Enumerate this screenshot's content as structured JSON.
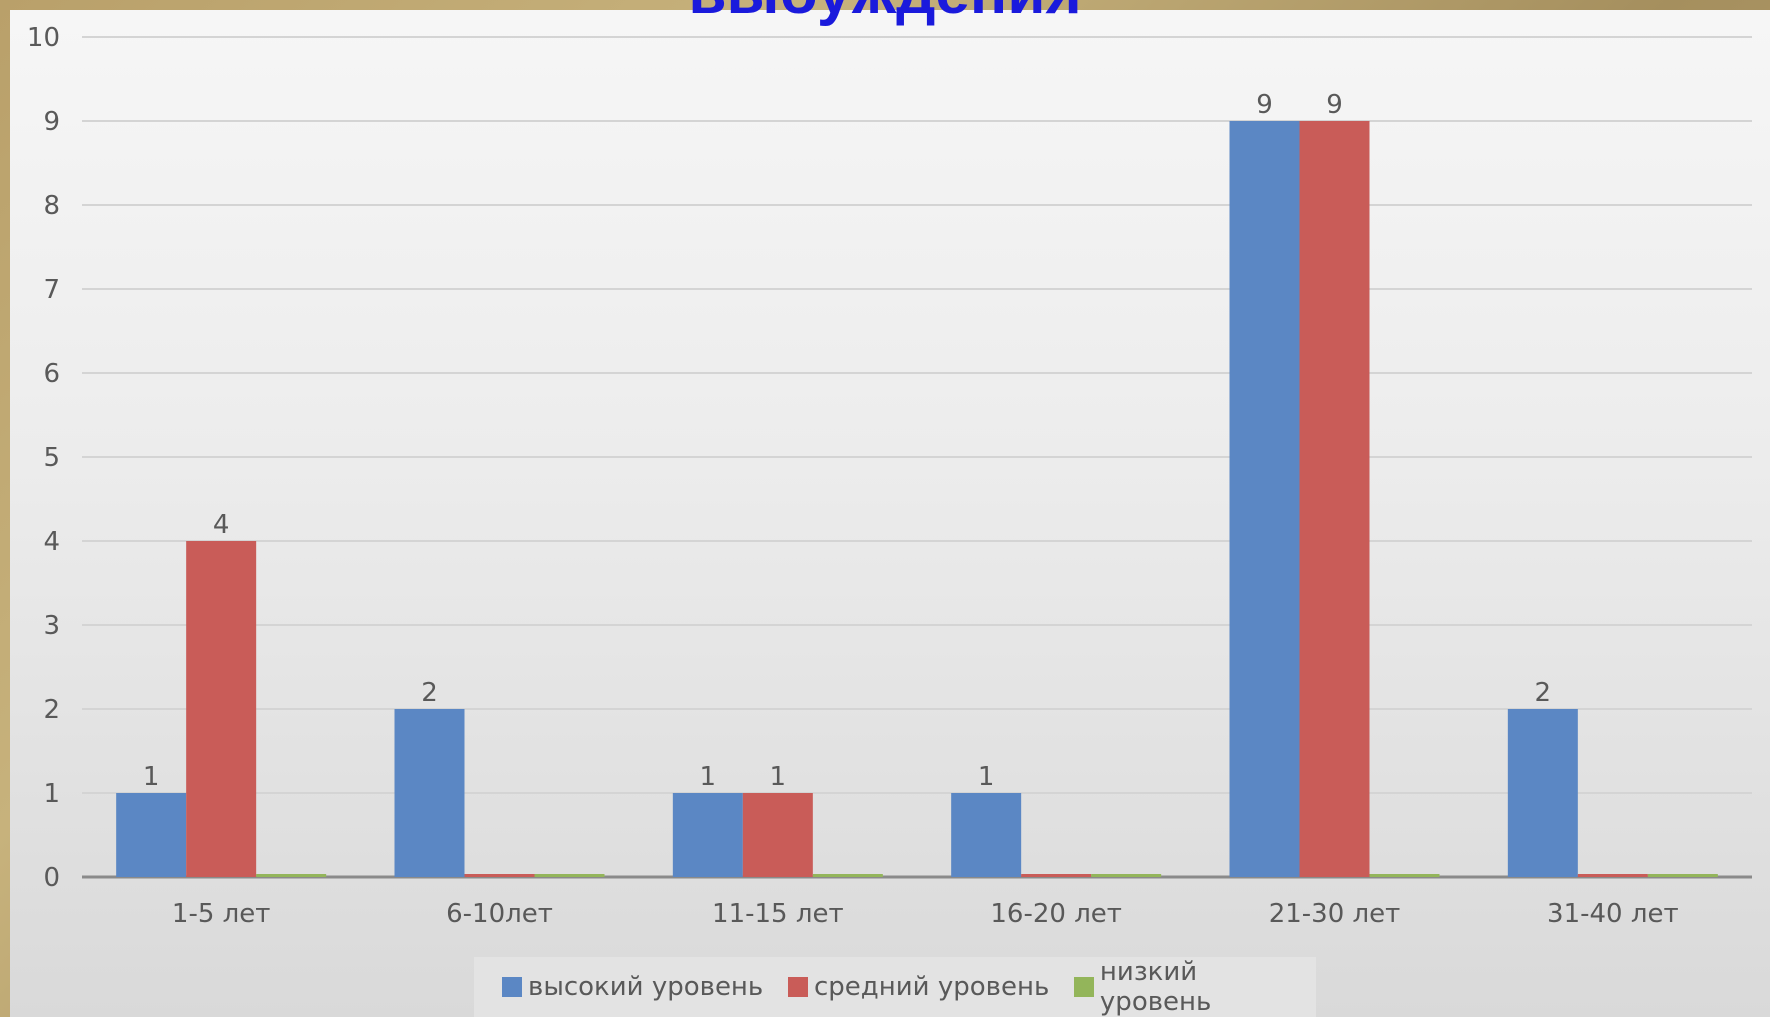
{
  "page": {
    "title": "выбуждения"
  },
  "colors": {
    "high": "#5b87c4",
    "medium": "#c95c58",
    "low": "#93b55a",
    "grid": "#d4d4d4",
    "axis_text": "#595959"
  },
  "chart_data": {
    "type": "bar",
    "title": "",
    "xlabel": "",
    "ylabel": "",
    "ylim": [
      0,
      10
    ],
    "yticks": [
      "0",
      "1",
      "2",
      "3",
      "4",
      "5",
      "6",
      "7",
      "8",
      "9",
      "10"
    ],
    "grid": true,
    "legend_position": "bottom",
    "categories": [
      "1-5 лет",
      "6-10лет",
      "11-15 лет",
      "16-20 лет",
      "21-30 лет",
      "31-40 лет"
    ],
    "series": [
      {
        "name": "высокий уровень",
        "color": "#5b87c4",
        "values": [
          1,
          2,
          1,
          1,
          9,
          2
        ]
      },
      {
        "name": "средний уровень",
        "color": "#c95c58",
        "values": [
          4,
          0,
          1,
          0,
          9,
          0
        ]
      },
      {
        "name": "низкий уровень",
        "color": "#93b55a",
        "values": [
          0,
          0,
          0,
          0,
          0,
          0
        ]
      }
    ]
  }
}
